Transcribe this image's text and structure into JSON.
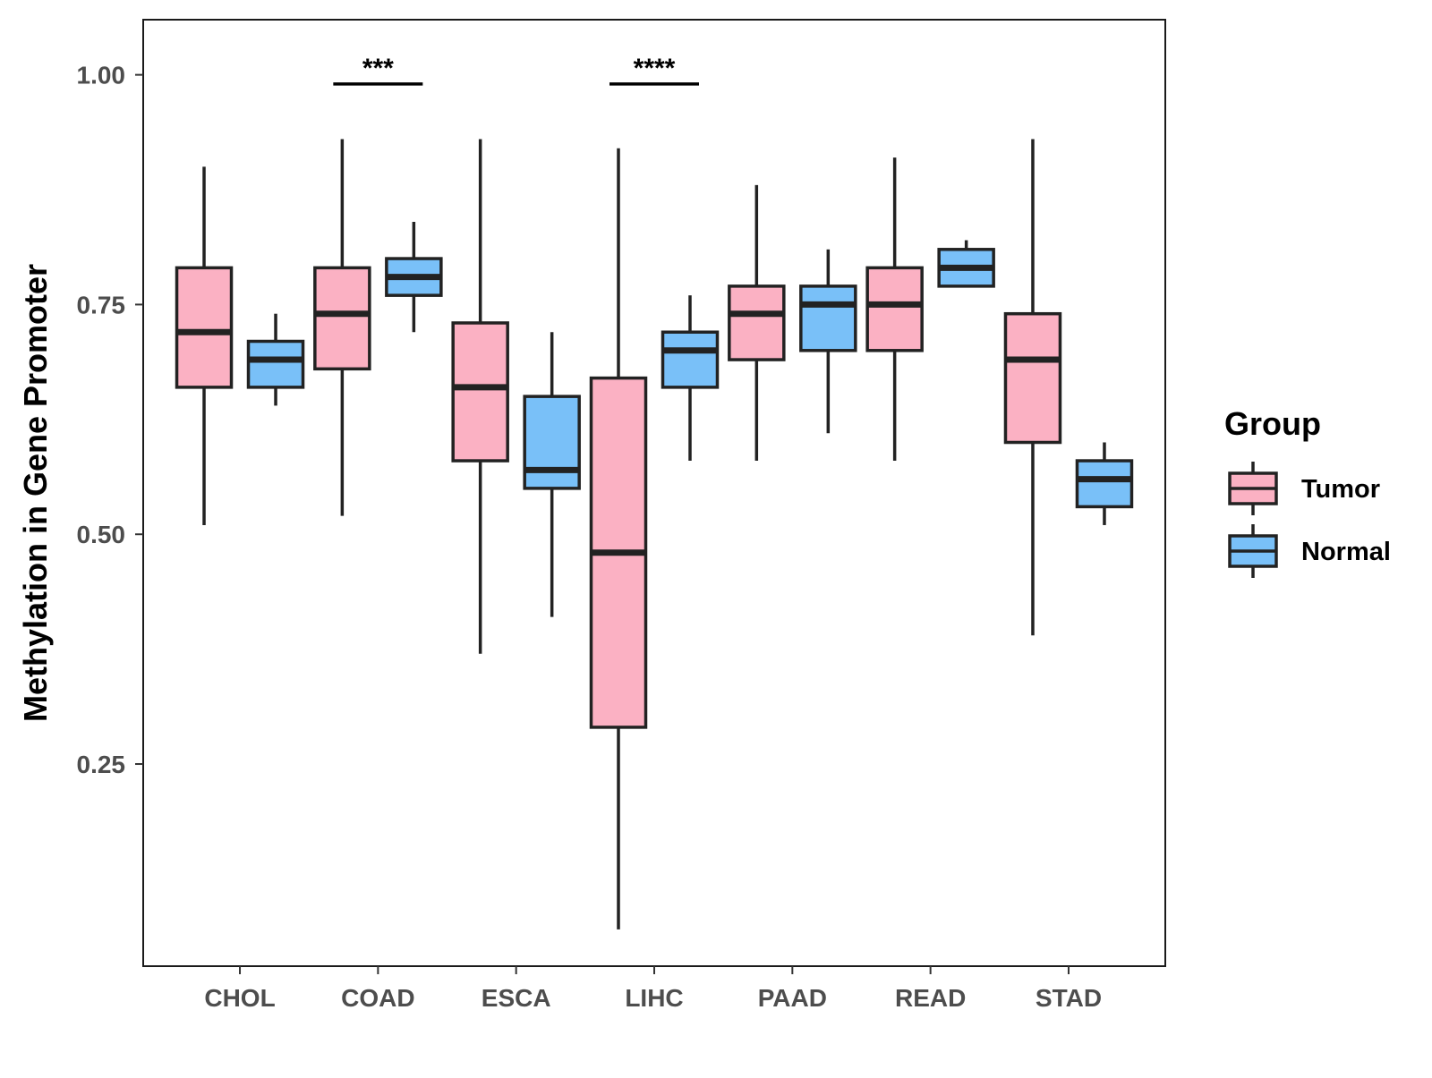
{
  "chart_data": {
    "type": "boxplot",
    "title": "",
    "xlabel": "",
    "ylabel": "Methylation in Gene Promoter",
    "ylim": [
      0.03,
      1.06
    ],
    "yticks": [
      0.25,
      0.5,
      0.75,
      1.0
    ],
    "ytick_labels": [
      "0.25",
      "0.50",
      "0.75",
      "1.00"
    ],
    "categories": [
      "CHOL",
      "COAD",
      "ESCA",
      "LIHC",
      "PAAD",
      "READ",
      "STAD"
    ],
    "grid": false,
    "legend": {
      "title": "Group",
      "position": "right",
      "entries": [
        {
          "name": "Tumor",
          "color": "#fbb1c3"
        },
        {
          "name": "Normal",
          "color": "#79c0f8"
        }
      ]
    },
    "series": [
      {
        "name": "Tumor",
        "color": "#fbb1c3",
        "boxes": [
          {
            "category": "CHOL",
            "min": 0.51,
            "q1": 0.66,
            "median": 0.72,
            "q3": 0.79,
            "max": 0.9
          },
          {
            "category": "COAD",
            "min": 0.52,
            "q1": 0.68,
            "median": 0.74,
            "q3": 0.79,
            "max": 0.93
          },
          {
            "category": "ESCA",
            "min": 0.37,
            "q1": 0.58,
            "median": 0.66,
            "q3": 0.73,
            "max": 0.93
          },
          {
            "category": "LIHC",
            "min": 0.07,
            "q1": 0.29,
            "median": 0.48,
            "q3": 0.67,
            "max": 0.92
          },
          {
            "category": "PAAD",
            "min": 0.58,
            "q1": 0.69,
            "median": 0.74,
            "q3": 0.77,
            "max": 0.88
          },
          {
            "category": "READ",
            "min": 0.58,
            "q1": 0.7,
            "median": 0.75,
            "q3": 0.79,
            "max": 0.91
          },
          {
            "category": "STAD",
            "min": 0.39,
            "q1": 0.6,
            "median": 0.69,
            "q3": 0.74,
            "max": 0.93
          }
        ]
      },
      {
        "name": "Normal",
        "color": "#79c0f8",
        "boxes": [
          {
            "category": "CHOL",
            "min": 0.64,
            "q1": 0.66,
            "median": 0.69,
            "q3": 0.71,
            "max": 0.74
          },
          {
            "category": "COAD",
            "min": 0.72,
            "q1": 0.76,
            "median": 0.78,
            "q3": 0.8,
            "max": 0.84
          },
          {
            "category": "ESCA",
            "min": 0.41,
            "q1": 0.55,
            "median": 0.57,
            "q3": 0.65,
            "max": 0.72
          },
          {
            "category": "LIHC",
            "min": 0.58,
            "q1": 0.66,
            "median": 0.7,
            "q3": 0.72,
            "max": 0.76
          },
          {
            "category": "PAAD",
            "min": 0.61,
            "q1": 0.7,
            "median": 0.75,
            "q3": 0.77,
            "max": 0.81
          },
          {
            "category": "READ",
            "min": 0.77,
            "q1": 0.77,
            "median": 0.79,
            "q3": 0.81,
            "max": 0.82
          },
          {
            "category": "STAD",
            "min": 0.51,
            "q1": 0.53,
            "median": 0.56,
            "q3": 0.58,
            "max": 0.6
          }
        ]
      }
    ],
    "annotations": [
      {
        "category": "COAD",
        "label": "***",
        "y": 0.99
      },
      {
        "category": "LIHC",
        "label": "****",
        "y": 0.99
      }
    ]
  }
}
